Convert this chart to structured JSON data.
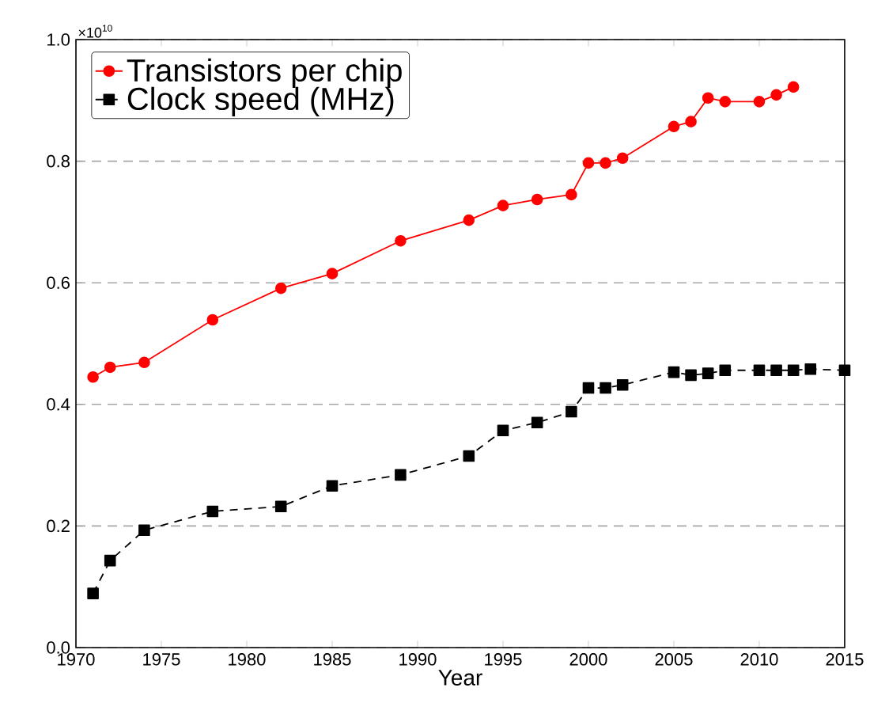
{
  "chart_data": {
    "type": "line",
    "xlabel": "Year",
    "annotations": [
      "×10$^{10}$"
    ],
    "xlim": [
      1970,
      2015
    ],
    "xticks": [
      1970,
      1975,
      1980,
      1985,
      1990,
      1995,
      2000,
      2005,
      2010,
      2015
    ],
    "ylim": [
      0,
      1
    ],
    "yticks": [
      {
        "value": 0,
        "label": "0.0"
      },
      {
        "value": 0.2,
        "label": "0.2"
      },
      {
        "value": 0.4,
        "label": "0.4"
      },
      {
        "value": 0.6,
        "label": "0.6"
      },
      {
        "value": 0.8,
        "label": "0.8"
      },
      {
        "value": 1,
        "label": "1.0"
      }
    ],
    "grid": "y",
    "legend": "top left",
    "series": [
      {
        "name": "Transistors per chip",
        "color": "#ff0000",
        "marker": "circle",
        "line_style": "solid",
        "x": [
          1971,
          1972,
          1974,
          1978,
          1982,
          1985,
          1989,
          1993,
          1995,
          1997,
          1999,
          2000,
          2001,
          2002,
          2005,
          2006,
          2007,
          2008,
          2010,
          2011,
          2012
        ],
        "values": [
          0.445,
          0.461,
          0.469,
          0.539,
          0.591,
          0.615,
          0.669,
          0.703,
          0.727,
          0.737,
          0.745,
          0.797,
          0.797,
          0.805,
          0.857,
          0.865,
          0.904,
          0.898,
          0.898,
          0.909,
          0.922
        ]
      },
      {
        "name": "Clock speed (MHz)",
        "color": "#000000",
        "marker": "square",
        "line_style": "dashed",
        "x": [
          1971,
          1972,
          1974,
          1978,
          1982,
          1985,
          1989,
          1993,
          1995,
          1997,
          1999,
          2000,
          2001,
          2002,
          2005,
          2006,
          2007,
          2008,
          2010,
          2011,
          2012,
          2013,
          2015
        ],
        "values": [
          0.089,
          0.143,
          0.193,
          0.224,
          0.232,
          0.266,
          0.284,
          0.315,
          0.357,
          0.37,
          0.388,
          0.427,
          0.427,
          0.432,
          0.453,
          0.448,
          0.451,
          0.456,
          0.456,
          0.456,
          0.456,
          0.458,
          0.456
        ]
      }
    ]
  }
}
